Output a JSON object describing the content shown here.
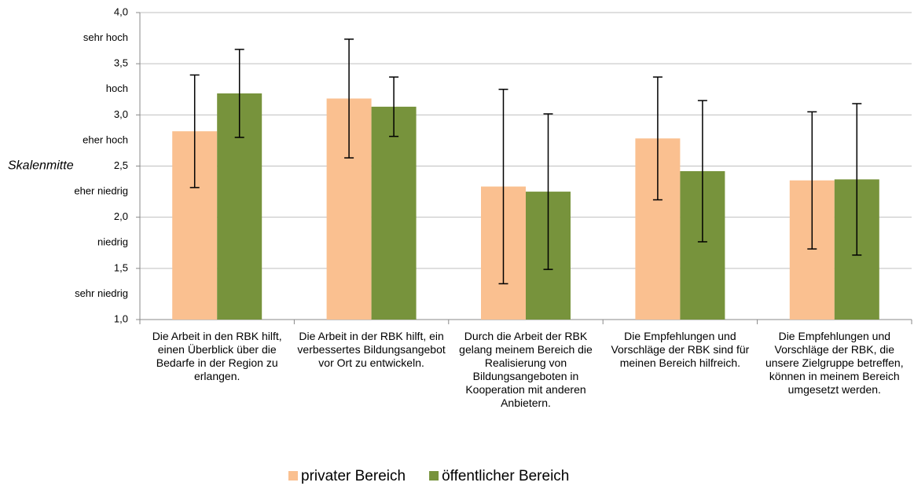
{
  "chart_data": {
    "type": "bar",
    "categories": [
      "Die Arbeit in den RBK hilft, einen Überblick über die Bedarfe in der Region zu erlangen.",
      "Die Arbeit in der RBK hilft, ein verbessertes Bildungsangebot vor Ort zu entwickeln.",
      "Durch die Arbeit der RBK gelang meinem Bereich die Realisierung von Bildungsangeboten in Kooperation mit anderen Anbietern.",
      "Die Empfehlungen und Vorschläge der RBK sind für meinen Bereich hilfreich.",
      "Die Empfehlungen und Vorschläge der RBK, die unsere Zielgruppe betreffen, können in meinem Bereich umgesetzt werden."
    ],
    "series": [
      {
        "name": "privater Bereich",
        "color": "#fac090",
        "values": [
          2.84,
          3.16,
          2.3,
          2.77,
          2.36
        ],
        "errors": [
          0.55,
          0.58,
          0.95,
          0.6,
          0.67
        ]
      },
      {
        "name": "öffentlicher Bereich",
        "color": "#77933c",
        "values": [
          3.21,
          3.08,
          2.25,
          2.45,
          2.37
        ],
        "errors": [
          0.43,
          0.29,
          0.76,
          0.69,
          0.74
        ]
      }
    ],
    "ylim": [
      1,
      4
    ],
    "yticks": [
      {
        "value": 1,
        "label": "1,0"
      },
      {
        "value": 1.5,
        "label": "1,5"
      },
      {
        "value": 2,
        "label": "2,0"
      },
      {
        "value": 2.5,
        "label": "2,5"
      },
      {
        "value": 3,
        "label": "3,0"
      },
      {
        "value": 3.5,
        "label": "3,5"
      },
      {
        "value": 4,
        "label": "4,0"
      }
    ],
    "scale_labels": [
      {
        "value": 1.25,
        "label": "sehr niedrig"
      },
      {
        "value": 1.75,
        "label": "niedrig"
      },
      {
        "value": 2.25,
        "label": "eher niedrig"
      },
      {
        "value": 2.75,
        "label": "eher hoch"
      },
      {
        "value": 3.25,
        "label": "hoch"
      },
      {
        "value": 3.75,
        "label": "sehr hoch"
      }
    ],
    "midpoint": {
      "value": 2.5,
      "label": "Skalenmitte"
    },
    "grid": true,
    "legend": "bottom"
  }
}
